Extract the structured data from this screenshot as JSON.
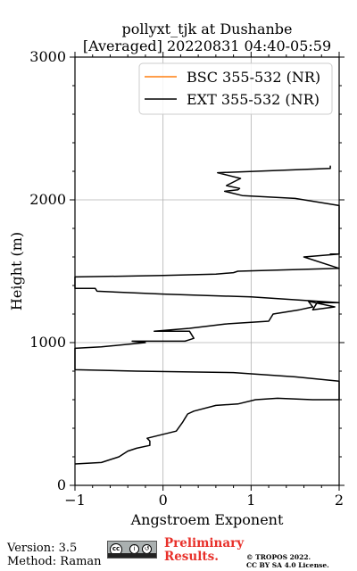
{
  "chart_data": {
    "type": "line",
    "title_line1": "pollyxt_tjk at Dushanbe",
    "title_line2": "[Averaged] 20220831 04:40-05:59",
    "xlabel": "Angstroem Exponent",
    "ylabel": "Height (m)",
    "xlim": [
      -1,
      2
    ],
    "ylim": [
      0,
      3000
    ],
    "x_ticks": [
      -1,
      0,
      1,
      2
    ],
    "x_tick_labels": [
      "−1",
      "0",
      "1",
      "2"
    ],
    "y_ticks": [
      0,
      1000,
      2000,
      3000
    ],
    "y_tick_labels": [
      "0",
      "1000",
      "2000",
      "3000"
    ],
    "grid": true,
    "legend_position": "top-right",
    "series": [
      {
        "name": "BSC 355-532 (NR)",
        "color": "#ff7f0e",
        "x": [],
        "y": []
      },
      {
        "name": "EXT 355-532 (NR)",
        "color": "#000000",
        "x": [
          -1.0,
          -0.7,
          -0.5,
          -0.4,
          -0.3,
          -0.15,
          -0.15,
          -0.18,
          0.15,
          0.22,
          0.25,
          0.28,
          0.35,
          0.6,
          0.85,
          1.05,
          1.3,
          1.7,
          2.0,
          2.0,
          1.5,
          0.8,
          -0.3,
          -1.0,
          -1.0,
          -0.7,
          -0.2,
          -0.35,
          0.25,
          0.3,
          0.35,
          0.3,
          -0.1,
          0.3,
          0.7,
          1.2,
          1.25,
          1.55,
          1.7,
          1.65,
          1.95,
          1.7,
          1.75,
          2.0,
          1.0,
          0.0,
          -0.75,
          -0.77,
          -1.0,
          -1.0,
          0.0,
          0.6,
          0.8,
          0.85,
          2.0,
          1.6,
          2.0,
          1.9,
          2.0,
          2.0,
          2.0,
          1.5,
          0.9,
          0.7,
          0.85,
          0.87,
          0.72,
          0.88,
          0.62,
          1.9,
          1.9
        ],
        "y": [
          150,
          160,
          200,
          240,
          260,
          280,
          310,
          330,
          380,
          440,
          470,
          500,
          520,
          560,
          570,
          600,
          610,
          600,
          600,
          730,
          760,
          790,
          800,
          810,
          960,
          970,
          1000,
          1010,
          1010,
          1020,
          1030,
          1080,
          1080,
          1100,
          1130,
          1150,
          1200,
          1230,
          1250,
          1290,
          1250,
          1230,
          1280,
          1280,
          1320,
          1340,
          1360,
          1380,
          1380,
          1460,
          1470,
          1480,
          1490,
          1500,
          1520,
          1600,
          1620,
          1620,
          1620,
          1620,
          1960,
          2010,
          2030,
          2060,
          2070,
          2080,
          2100,
          2150,
          2190,
          2220,
          2240
        ]
      }
    ]
  },
  "footer": {
    "version": "Version: 3.5",
    "method": "Method: Raman",
    "preliminary_line1": "Preliminary",
    "preliminary_line2": "Results.",
    "copyright_line1": "© TROPOS 2022.",
    "copyright_line2": "CC BY SA 4.0 License.",
    "badge_cc": "cc",
    "badge_by": "i",
    "badge_sa": "↺"
  }
}
